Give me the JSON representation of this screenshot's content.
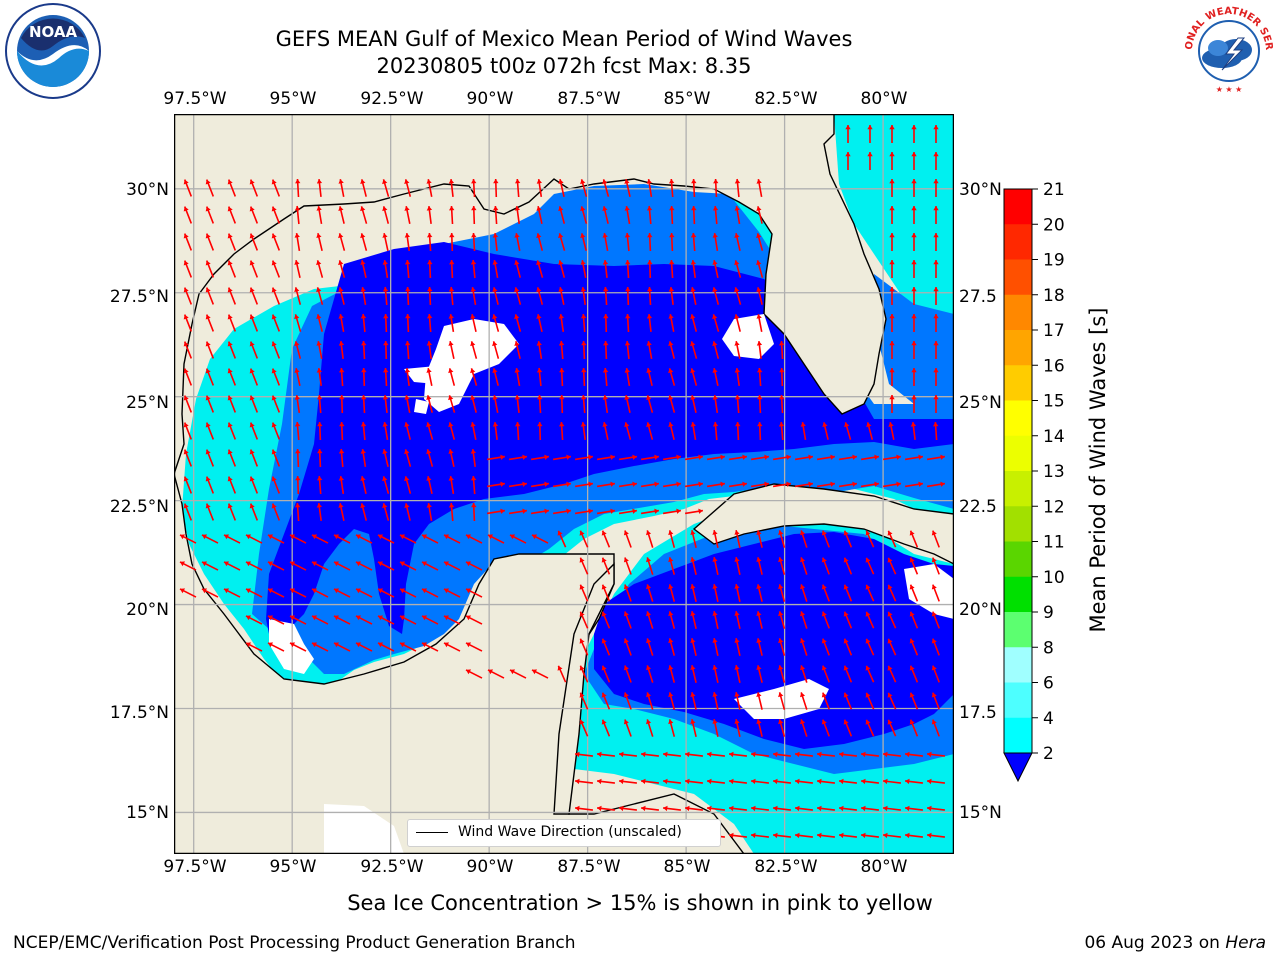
{
  "title": {
    "line1": "GEFS MEAN Gulf of Mexico Mean Period of Wind Waves",
    "line2": "20230805 t00z 072h fcst   Max: 8.35"
  },
  "map": {
    "lon_range": [
      -98,
      -78.2
    ],
    "lat_range": [
      14,
      31.8
    ],
    "lon_ticks": [
      -97.5,
      -95,
      -92.5,
      -90,
      -87.5,
      -85,
      -82.5,
      -80
    ],
    "lon_tick_labels": [
      "97.5°W",
      "95°W",
      "92.5°W",
      "90°W",
      "87.5°W",
      "85°W",
      "82.5°W",
      "80°W"
    ],
    "lat_ticks": [
      30,
      27.5,
      25,
      22.5,
      20,
      17.5,
      15
    ],
    "lat_tick_labels_left": [
      "30°N",
      "27.5°N",
      "25°N",
      "22.5°N",
      "20°N",
      "17.5°N",
      "15°N"
    ],
    "lat_tick_labels_right": [
      "30°N",
      "27.5",
      "25°N",
      "22.5",
      "20°N",
      "17.5",
      "15°N"
    ],
    "grid": true,
    "colors": {
      "land": "#efecdc",
      "coast": "#000000",
      "level_2_4": "#0000ff",
      "level_4_6": "#0077ff",
      "level_6_8": "#00f0f0",
      "arrow": "#ff0000",
      "grid": "#b0b0b0"
    },
    "legend_label": "Wind Wave Direction (unscaled)",
    "legend_placement": "bottom-center"
  },
  "colorbar": {
    "label": "Mean Period of Wind Waves [s]",
    "tick_labels": [
      "2",
      "4",
      "6",
      "8",
      "9",
      "10",
      "11",
      "12",
      "13",
      "14",
      "15",
      "16",
      "17",
      "18",
      "19",
      "20",
      "21"
    ],
    "colors": [
      "#0000ff",
      "#0077ff",
      "#00ffff",
      "#4dffff",
      "#a0ffff",
      "#5cff70",
      "#00e000",
      "#5ad600",
      "#a2e000",
      "#c8f000",
      "#ecff00",
      "#ffff00",
      "#ffcc00",
      "#ffa500",
      "#ff8800",
      "#ff5000",
      "#ff2800",
      "#ff0000"
    ],
    "extend": "min"
  },
  "note": "Sea Ice Concentration > 15% is shown in pink to yellow",
  "credit": "NCEP/EMC/Verification Post Processing Product Generation Branch",
  "date": "06 Aug 2023 on ",
  "host": "Hera",
  "logos": {
    "left": "NOAA",
    "right": "NATIONAL WEATHER SERVICE"
  }
}
